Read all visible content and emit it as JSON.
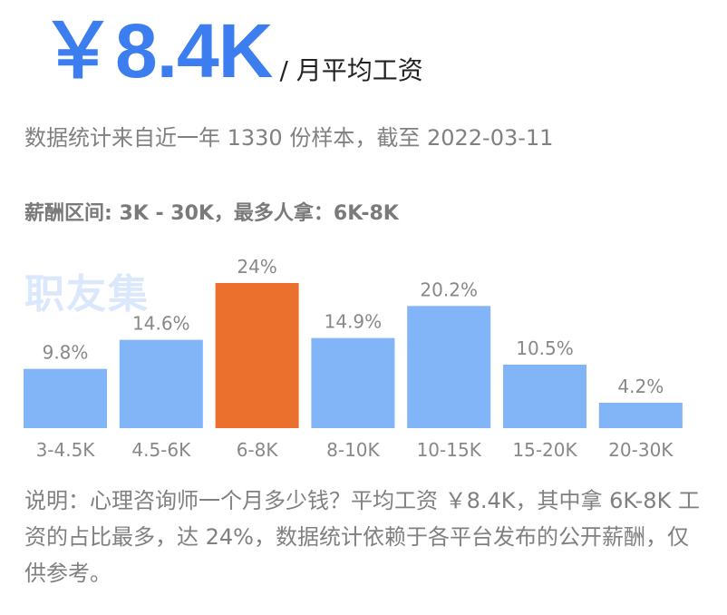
{
  "header": {
    "salary": "￥8.4K",
    "unit": "/ 月平均工资"
  },
  "source_text": "数据统计来自近一年 1330 份样本，截至 2022-03-11",
  "range_text": "薪酬区间: 3K - 30K，最多人拿：6K-8K",
  "watermark": "职友集",
  "note": "说明：心理咨询师一个月多少钱？平均工资 ￥8.4K，其中拿 6K-8K 工资的占比最多，达 24%，数据统计依赖于各平台发布的公开薪酬，仅供参考。",
  "colors": {
    "bar": "#82b4f8",
    "highlight": "#ec702d",
    "salary": "#3c7ef0",
    "label": "#888888"
  },
  "chart_data": {
    "type": "bar",
    "categories": [
      "3-4.5K",
      "4.5-6K",
      "6-8K",
      "8-10K",
      "10-15K",
      "15-20K",
      "20-30K"
    ],
    "values": [
      9.8,
      14.6,
      24,
      14.9,
      20.2,
      10.5,
      4.2
    ],
    "value_labels": [
      "9.8%",
      "14.6%",
      "24%",
      "14.9%",
      "20.2%",
      "10.5%",
      "4.2%"
    ],
    "highlight_category": "6-8K",
    "ylim": [
      0,
      24
    ],
    "grid": false,
    "legend": "none"
  }
}
